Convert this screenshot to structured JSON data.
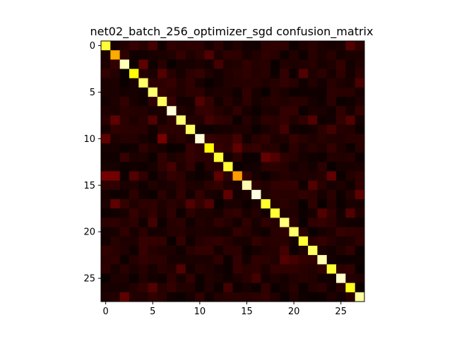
{
  "chart_data": {
    "type": "heatmap",
    "title": "net02_batch_256_optimizer_sgd confusion_matrix",
    "colormap": "hot",
    "n": 28,
    "xticks": [
      0,
      5,
      10,
      15,
      20,
      25
    ],
    "yticks": [
      0,
      5,
      10,
      15,
      20,
      25
    ],
    "diagonal": [
      0.8,
      0.62,
      0.93,
      0.75,
      0.85,
      0.86,
      0.84,
      0.96,
      0.86,
      0.84,
      0.96,
      0.74,
      0.8,
      0.8,
      0.6,
      0.92,
      0.97,
      0.79,
      0.8,
      0.87,
      0.85,
      0.8,
      0.84,
      0.92,
      0.8,
      0.95,
      0.77,
      0.9
    ],
    "off_diagonal": [
      {
        "r": 0,
        "c": 5,
        "v": 0.08
      },
      {
        "r": 0,
        "c": 26,
        "v": 0.1
      },
      {
        "r": 1,
        "c": 11,
        "v": 0.1
      },
      {
        "r": 2,
        "c": 4,
        "v": 0.12
      },
      {
        "r": 2,
        "c": 12,
        "v": 0.08
      },
      {
        "r": 3,
        "c": 6,
        "v": 0.1
      },
      {
        "r": 3,
        "c": 21,
        "v": 0.1
      },
      {
        "r": 4,
        "c": 27,
        "v": 0.09
      },
      {
        "r": 6,
        "c": 10,
        "v": 0.1
      },
      {
        "r": 8,
        "c": 1,
        "v": 0.12
      },
      {
        "r": 8,
        "c": 5,
        "v": 0.1
      },
      {
        "r": 8,
        "c": 11,
        "v": 0.08
      },
      {
        "r": 8,
        "c": 22,
        "v": 0.1
      },
      {
        "r": 8,
        "c": 26,
        "v": 0.1
      },
      {
        "r": 9,
        "c": 19,
        "v": 0.08
      },
      {
        "r": 9,
        "c": 24,
        "v": 0.08
      },
      {
        "r": 10,
        "c": 0,
        "v": 0.12
      },
      {
        "r": 10,
        "c": 6,
        "v": 0.15
      },
      {
        "r": 10,
        "c": 14,
        "v": 0.08
      },
      {
        "r": 11,
        "c": 14,
        "v": 0.12
      },
      {
        "r": 12,
        "c": 17,
        "v": 0.13
      },
      {
        "r": 12,
        "c": 18,
        "v": 0.1
      },
      {
        "r": 13,
        "c": 7,
        "v": 0.08
      },
      {
        "r": 14,
        "c": 0,
        "v": 0.15
      },
      {
        "r": 14,
        "c": 1,
        "v": 0.15
      },
      {
        "r": 14,
        "c": 3,
        "v": 0.1
      },
      {
        "r": 14,
        "c": 12,
        "v": 0.12
      },
      {
        "r": 14,
        "c": 24,
        "v": 0.12
      },
      {
        "r": 15,
        "c": 22,
        "v": 0.1
      },
      {
        "r": 16,
        "c": 13,
        "v": 0.12
      },
      {
        "r": 16,
        "c": 27,
        "v": 0.12
      },
      {
        "r": 17,
        "c": 1,
        "v": 0.12
      },
      {
        "r": 17,
        "c": 9,
        "v": 0.1
      },
      {
        "r": 17,
        "c": 11,
        "v": 0.1
      },
      {
        "r": 18,
        "c": 23,
        "v": 0.1
      },
      {
        "r": 18,
        "c": 26,
        "v": 0.1
      },
      {
        "r": 19,
        "c": 5,
        "v": 0.08
      },
      {
        "r": 22,
        "c": 19,
        "v": 0.08
      },
      {
        "r": 23,
        "c": 19,
        "v": 0.1
      },
      {
        "r": 23,
        "c": 20,
        "v": 0.08
      },
      {
        "r": 24,
        "c": 8,
        "v": 0.1
      },
      {
        "r": 25,
        "c": 16,
        "v": 0.08
      },
      {
        "r": 26,
        "c": 5,
        "v": 0.1
      },
      {
        "r": 26,
        "c": 13,
        "v": 0.08
      },
      {
        "r": 27,
        "c": 2,
        "v": 0.12
      }
    ],
    "background_noise_max": 0.06
  }
}
